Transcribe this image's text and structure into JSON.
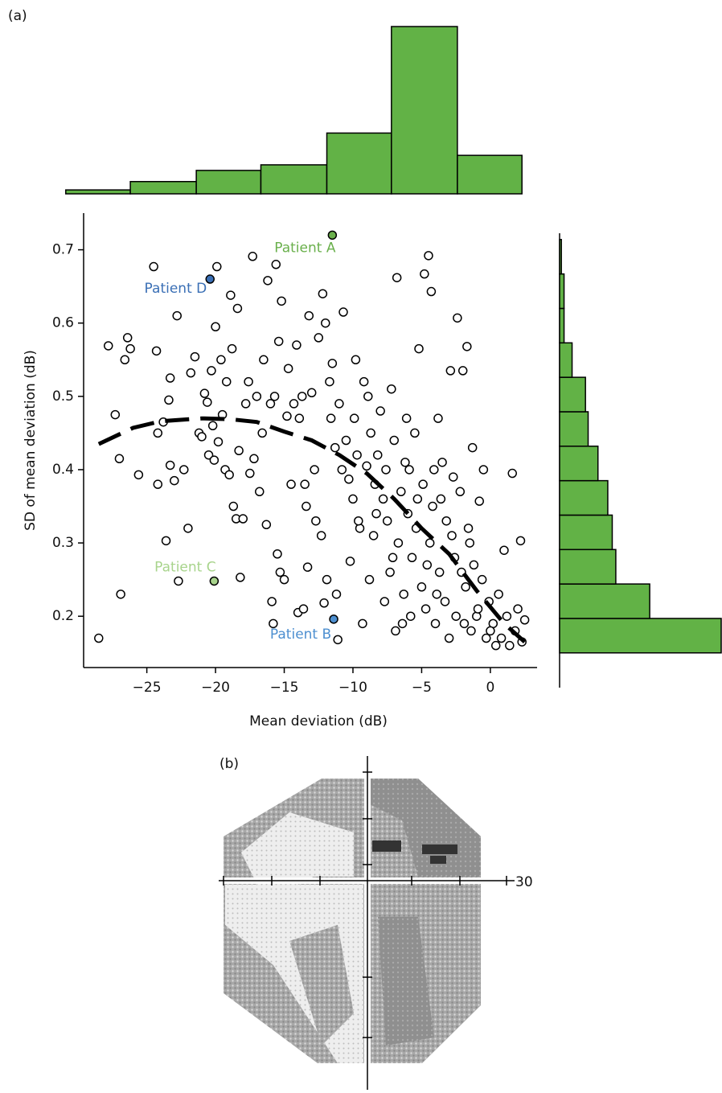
{
  "panel_labels": {
    "a": "(a)",
    "b": "(b)"
  },
  "visual_field": {
    "eccentricity_label": "30"
  },
  "chart_data": [
    {
      "type": "scatter",
      "xlabel": "Mean deviation (dB)",
      "ylabel": "SD of mean deviation (dB)",
      "xlim": [
        -29.6,
        3.4
      ],
      "ylim": [
        0.13,
        0.75
      ],
      "xticks": [
        {
          "value": -25,
          "label": "−25"
        },
        {
          "value": -20,
          "label": "−20"
        },
        {
          "value": -15,
          "label": "−15"
        },
        {
          "value": -10,
          "label": "−10"
        },
        {
          "value": -5,
          "label": "−5"
        },
        0
      ],
      "yticks": [
        0.2,
        0.3,
        0.4,
        0.5,
        0.6,
        0.7
      ],
      "marker_color": "#000000",
      "x": [
        -28.5,
        -27.8,
        -27.3,
        -27,
        -26.9,
        -26.6,
        -26.4,
        -26.2,
        -25.6,
        -24.5,
        -24.3,
        -24.2,
        -24.2,
        -23.8,
        -23.6,
        -23.4,
        -23.3,
        -23.3,
        -23,
        -22.8,
        -22.7,
        -22.3,
        -22,
        -21.8,
        -21.5,
        -21.2,
        -21,
        -20.8,
        -20.6,
        -20.5,
        -20.3,
        -20.2,
        -20.1,
        -20,
        -19.9,
        -19.8,
        -19.6,
        -19.5,
        -19.3,
        -19.2,
        -19,
        -18.9,
        -18.8,
        -18.7,
        -18.5,
        -18.4,
        -18.3,
        -18.2,
        -18,
        -17.8,
        -17.6,
        -17.5,
        -17.3,
        -17.2,
        -17,
        -16.8,
        -16.6,
        -16.5,
        -16.3,
        -16.2,
        -16,
        -15.9,
        -15.8,
        -15.7,
        -15.6,
        -15.5,
        -15.4,
        -15.3,
        -15.2,
        -15,
        -14.8,
        -14.7,
        -14.5,
        -14.3,
        -14.1,
        -14,
        -13.9,
        -13.7,
        -13.6,
        -13.5,
        -13.4,
        -13.3,
        -13.2,
        -13,
        -12.8,
        -12.7,
        -12.5,
        -12.3,
        -12.2,
        -12.1,
        -12,
        -11.9,
        -11.7,
        -11.6,
        -11.5,
        -11.3,
        -11.2,
        -11.1,
        -11,
        -10.8,
        -10.7,
        -10.5,
        -10.3,
        -10.2,
        -10,
        -9.9,
        -9.7,
        -9.5,
        -9.3,
        -9.2,
        -9,
        -8.8,
        -8.7,
        -8.5,
        -8.4,
        -8.2,
        -8,
        -7.8,
        -7.6,
        -7.5,
        -7.3,
        -7.2,
        -7,
        -6.9,
        -6.8,
        -6.7,
        -6.5,
        -6.3,
        -6.2,
        -6,
        -5.8,
        -5.7,
        -5.5,
        -5.4,
        -5.2,
        -5,
        -4.9,
        -4.8,
        -4.7,
        -4.5,
        -4.4,
        -4.3,
        -4.2,
        -4,
        -3.8,
        -3.7,
        -3.5,
        -3.3,
        -3.2,
        -3,
        -2.9,
        -2.7,
        -2.6,
        -2.5,
        -2.4,
        -2.2,
        -2,
        -1.8,
        -1.7,
        -1.6,
        -1.4,
        -1.3,
        -1.2,
        -1,
        -0.8,
        -0.6,
        -0.5,
        -0.3,
        -0.1,
        0.2,
        0.4,
        0.6,
        0.8,
        1,
        1.2,
        1.4,
        1.6,
        1.8,
        2,
        2.2,
        2.3,
        2.5,
        -9.8,
        -8.9,
        -6.1,
        -5.3,
        -4.6,
        -3.9,
        -2.8,
        -1.9,
        -7.7,
        -6.4,
        -8.3,
        -3.6,
        -4.1,
        -2.1,
        0,
        -0.9,
        -1.5,
        -5.9,
        -7.1,
        -9.6
      ],
      "y": [
        0.17,
        0.569,
        0.475,
        0.415,
        0.23,
        0.55,
        0.58,
        0.565,
        0.393,
        0.677,
        0.562,
        0.45,
        0.38,
        0.465,
        0.303,
        0.495,
        0.406,
        0.525,
        0.385,
        0.61,
        0.248,
        0.4,
        0.32,
        0.532,
        0.554,
        0.45,
        0.445,
        0.504,
        0.492,
        0.42,
        0.535,
        0.46,
        0.413,
        0.595,
        0.677,
        0.438,
        0.55,
        0.475,
        0.4,
        0.52,
        0.393,
        0.638,
        0.565,
        0.35,
        0.333,
        0.62,
        0.426,
        0.253,
        0.333,
        0.49,
        0.52,
        0.395,
        0.691,
        0.415,
        0.5,
        0.37,
        0.45,
        0.55,
        0.325,
        0.658,
        0.49,
        0.22,
        0.19,
        0.5,
        0.68,
        0.285,
        0.575,
        0.26,
        0.63,
        0.25,
        0.473,
        0.538,
        0.38,
        0.49,
        0.57,
        0.205,
        0.47,
        0.5,
        0.21,
        0.38,
        0.35,
        0.267,
        0.61,
        0.505,
        0.4,
        0.33,
        0.58,
        0.31,
        0.64,
        0.218,
        0.6,
        0.25,
        0.52,
        0.47,
        0.545,
        0.43,
        0.23,
        0.168,
        0.49,
        0.4,
        0.615,
        0.44,
        0.387,
        0.275,
        0.36,
        0.47,
        0.42,
        0.32,
        0.19,
        0.52,
        0.405,
        0.25,
        0.45,
        0.31,
        0.38,
        0.42,
        0.48,
        0.36,
        0.4,
        0.33,
        0.26,
        0.51,
        0.44,
        0.18,
        0.662,
        0.3,
        0.37,
        0.23,
        0.41,
        0.34,
        0.2,
        0.28,
        0.45,
        0.32,
        0.565,
        0.24,
        0.38,
        0.667,
        0.21,
        0.692,
        0.3,
        0.643,
        0.35,
        0.19,
        0.47,
        0.26,
        0.41,
        0.22,
        0.33,
        0.17,
        0.535,
        0.39,
        0.28,
        0.2,
        0.607,
        0.37,
        0.535,
        0.24,
        0.568,
        0.32,
        0.18,
        0.43,
        0.27,
        0.2,
        0.357,
        0.25,
        0.4,
        0.17,
        0.22,
        0.19,
        0.16,
        0.23,
        0.17,
        0.29,
        0.2,
        0.16,
        0.395,
        0.18,
        0.21,
        0.303,
        0.165,
        0.195,
        0.55,
        0.5,
        0.47,
        0.36,
        0.27,
        0.23,
        0.31,
        0.19,
        0.22,
        0.19,
        0.34,
        0.36,
        0.4,
        0.26,
        0.18,
        0.21,
        0.3,
        0.4,
        0.28,
        0.33
      ],
      "trend": {
        "color": "#000000",
        "x": [
          -28.5,
          -26,
          -24,
          -21,
          -19,
          -17,
          -15,
          -13,
          -11,
          -9,
          -7,
          -5,
          -3,
          -1,
          1,
          2.5
        ],
        "y": [
          0.435,
          0.457,
          0.466,
          0.47,
          0.469,
          0.465,
          0.452,
          0.44,
          0.42,
          0.395,
          0.36,
          0.32,
          0.285,
          0.235,
          0.19,
          0.165
        ]
      },
      "highlights": {
        "labels": [
          "Patient A",
          "Patient D",
          "Patient C",
          "Patient B"
        ],
        "x": [
          -11.5,
          -20.4,
          -20.1,
          -11.4
        ],
        "y": [
          0.72,
          0.66,
          0.248,
          0.196
        ],
        "colors": [
          "#6ab04c",
          "#3a6fb5",
          "#a8d48c",
          "#4d8fd0"
        ]
      }
    },
    {
      "type": "histogram",
      "orientation": "vertical",
      "color": "#62b246",
      "bins": [
        -30.9,
        -26.2,
        -21.4,
        -16.7,
        -11.9,
        -7.2,
        -2.4,
        2.3
      ],
      "values": [
        7,
        22,
        42,
        52,
        109,
        300,
        69
      ],
      "ylim": [
        0,
        300
      ]
    },
    {
      "type": "histogram",
      "orientation": "horizontal",
      "color": "#62b246",
      "bins": [
        0.15,
        0.197,
        0.244,
        0.291,
        0.338,
        0.385,
        0.432,
        0.479,
        0.526,
        0.573,
        0.62,
        0.667,
        0.714
      ],
      "values": [
        182,
        101,
        63,
        59,
        54,
        43,
        32,
        29,
        14,
        5,
        5,
        2
      ],
      "xlim": [
        0,
        182
      ]
    }
  ]
}
